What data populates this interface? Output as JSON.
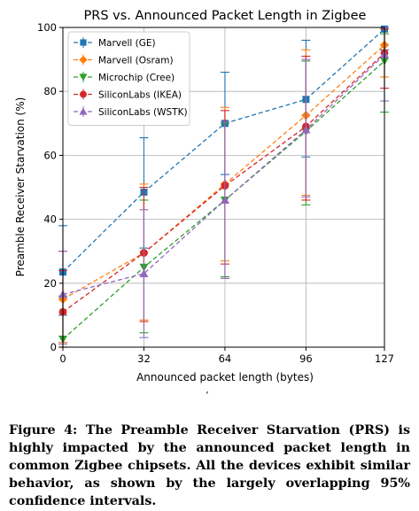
{
  "chart_data": {
    "type": "line",
    "title": "PRS vs. Announced Packet Length in Zigbee",
    "xlabel": "Announced packet length (bytes)",
    "ylabel": "Preamble Receiver Starvation (%)",
    "x": [
      0,
      32,
      64,
      96,
      127
    ],
    "xticks": [
      "0",
      "32",
      "64",
      "96",
      "127"
    ],
    "xlim": [
      0,
      127
    ],
    "ylim": [
      0,
      100
    ],
    "yticks": [
      "0",
      "20",
      "40",
      "60",
      "80",
      "100"
    ],
    "grid": true,
    "legend_position": "top-left",
    "series": [
      {
        "name": "Marvell (GE)",
        "color": "#1f77b4",
        "marker": "square",
        "values": [
          23.5,
          48.5,
          70,
          77.5,
          99.5
        ],
        "err_low": [
          10,
          31,
          54,
          59.5,
          93
        ],
        "err_high": [
          38,
          65.5,
          86,
          96,
          100
        ]
      },
      {
        "name": "Marvell (Osram)",
        "color": "#ff7f0e",
        "marker": "diamond",
        "values": [
          15,
          29.5,
          51,
          72.5,
          94.5
        ],
        "err_low": [
          1.5,
          8.5,
          27,
          47.5,
          84.5
        ],
        "err_high": [
          30,
          51,
          75,
          93,
          100
        ]
      },
      {
        "name": "Microchip (Cree)",
        "color": "#2ca02c",
        "marker": "triangle-down",
        "values": [
          2.5,
          25,
          46,
          67.5,
          89.5
        ],
        "err_low": [
          0,
          4.5,
          22,
          44.5,
          73.5
        ],
        "err_high": [
          16,
          46,
          70,
          89.5,
          98
        ]
      },
      {
        "name": "SiliconLabs (IKEA)",
        "color": "#d62728",
        "marker": "circle",
        "values": [
          11,
          29.5,
          50.5,
          69,
          92
        ],
        "err_low": [
          0,
          8,
          26,
          46,
          81
        ],
        "err_high": [
          24,
          50,
          74,
          91,
          99.5
        ]
      },
      {
        "name": "SiliconLabs (WSTK)",
        "color": "#9467bd",
        "marker": "triangle-up",
        "values": [
          16.5,
          23,
          46,
          68,
          91.5
        ],
        "err_low": [
          1,
          3,
          21.5,
          47,
          77
        ],
        "err_high": [
          30,
          43,
          70.5,
          90,
          100
        ]
      }
    ]
  },
  "stray_mark": "‘",
  "caption": "Figure 4: The Preamble Receiver Starvation (PRS) is highly impacted by the announced packet length in common Zigbee chipsets. All the devices exhibit similar behavior, as shown by the largely overlapping 95% confidence intervals."
}
